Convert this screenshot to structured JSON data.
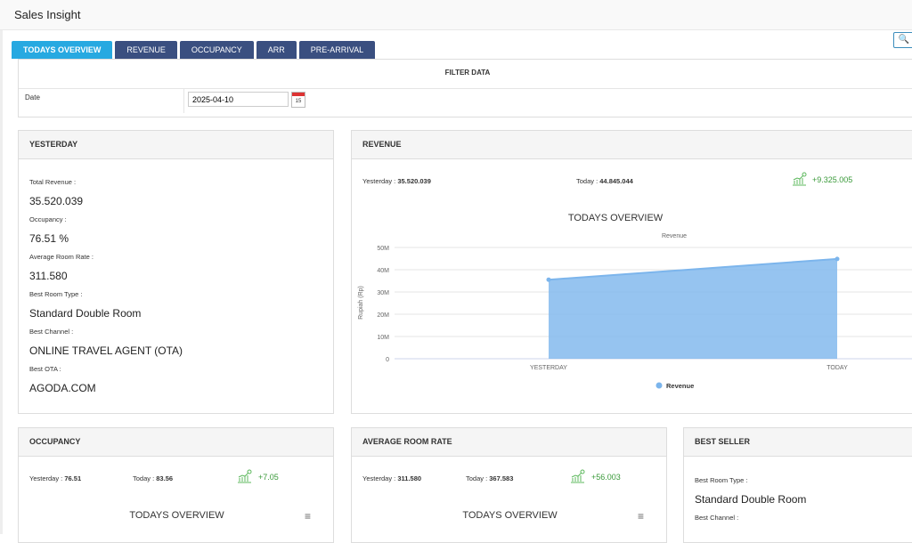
{
  "app": {
    "title": "Sales Insight"
  },
  "tabs": [
    {
      "label": "TODAYS OVERVIEW",
      "active": true
    },
    {
      "label": "REVENUE"
    },
    {
      "label": "OCCUPANCY"
    },
    {
      "label": "ARR"
    },
    {
      "label": "PRE-ARRIVAL"
    }
  ],
  "filter": {
    "title": "FILTER DATA",
    "date_label": "Date",
    "date_value": "2025-04-10",
    "calendar_day": "15"
  },
  "yesterday": {
    "title": "YESTERDAY",
    "total_revenue_label": "Total Revenue :",
    "total_revenue": "35.520.039",
    "occupancy_label": "Occupancy :",
    "occupancy": "76.51 %",
    "arr_label": "Average Room Rate :",
    "arr": "311.580",
    "room_type_label": "Best Room Type :",
    "room_type": "Standard Double Room",
    "channel_label": "Best Channel :",
    "channel": "ONLINE TRAVEL AGENT (OTA)",
    "ota_label": "Best OTA :",
    "ota": "AGODA.COM"
  },
  "revenue": {
    "title": "REVENUE",
    "yesterday_label": "Yesterday : ",
    "yesterday": "35.520.039",
    "today_label": "Today : ",
    "today": "44.845.044",
    "delta": "+9.325.005"
  },
  "chart_data": {
    "type": "area",
    "title": "TODAYS OVERVIEW",
    "subtitle": "Revenue",
    "ylabel": "Rupiah (Rp)",
    "xlabel": "",
    "categories": [
      "YESTERDAY",
      "TODAY"
    ],
    "series": [
      {
        "name": "Revenue",
        "values": [
          35520039,
          44845044
        ]
      }
    ],
    "ylim": [
      0,
      50000000
    ],
    "yticks": [
      "0",
      "10M",
      "20M",
      "30M",
      "40M",
      "50M"
    ],
    "grid": true,
    "legend": "bottom",
    "color": "#7cb5ec"
  },
  "occupancy": {
    "title": "OCCUPANCY",
    "yesterday_label": "Yesterday : ",
    "yesterday": "76.51",
    "today_label": "Today : ",
    "today": "83.56",
    "delta": "+7.05",
    "chart_title": "TODAYS OVERVIEW"
  },
  "arr": {
    "title": "AVERAGE ROOM RATE",
    "yesterday_label": "Yesterday : ",
    "yesterday": "311.580",
    "today_label": "Today : ",
    "today": "367.583",
    "delta": "+56.003",
    "chart_title": "TODAYS OVERVIEW"
  },
  "best_seller": {
    "title": "BEST SELLER",
    "room_type_label": "Best Room Type :",
    "room_type": "Standard Double Room",
    "channel_label": "Best Channel :"
  },
  "icons": {
    "search": "search-icon",
    "calendar": "calendar-icon",
    "trend": "trend-up-icon",
    "menu": "hamburger-menu-icon"
  },
  "colors": {
    "tab_active": "#27a9e1",
    "tab": "#3a4f80",
    "positive": "#3a9a3a"
  }
}
